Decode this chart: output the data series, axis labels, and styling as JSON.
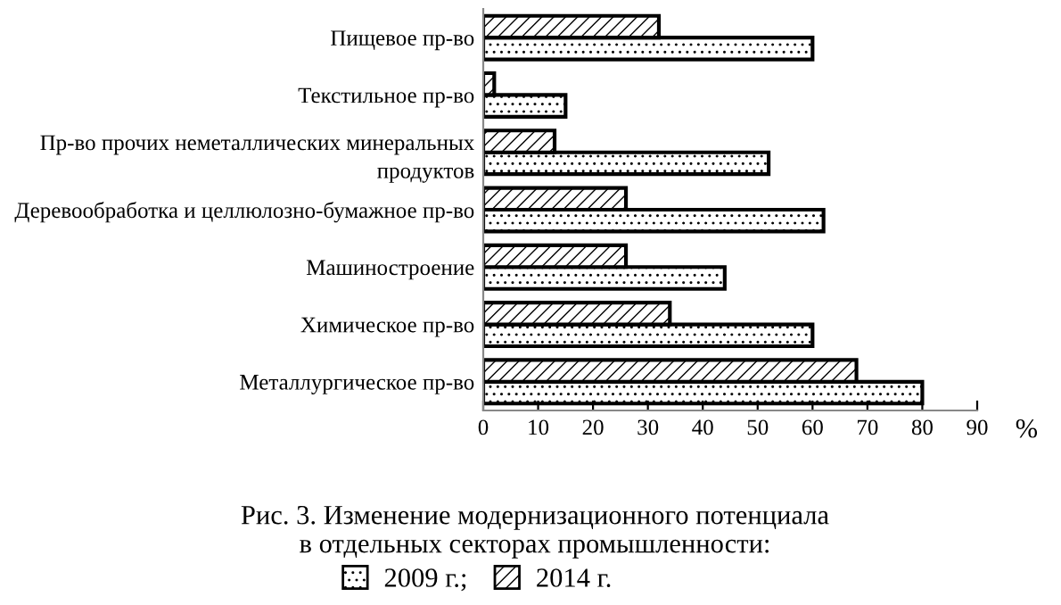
{
  "chart_data": {
    "type": "bar",
    "orientation": "horizontal",
    "xlabel": "%",
    "categories": [
      "Пищевое пр-во",
      "Текстильное пр-во",
      "Пр-во прочих неметаллических минеральных\nпродуктов",
      "Деревообработка и целлюлозно-бумажное пр-во",
      "Машиностроение",
      "Химическое пр-во",
      "Металлургическое пр-во"
    ],
    "series": [
      {
        "name": "2009 г.;",
        "color": "#000000",
        "values": [
          60,
          15,
          52,
          62,
          44,
          60,
          80
        ]
      },
      {
        "name": "2014 г.",
        "color": "#000000",
        "values": [
          32,
          2,
          13,
          26,
          26,
          34,
          68
        ]
      }
    ],
    "xlim": [
      0,
      90
    ],
    "xticks": [
      0,
      10,
      20,
      30,
      40,
      50,
      60,
      70,
      80,
      90
    ],
    "grid": false,
    "legend": "bottom",
    "annotations": [
      "Рис. 3. Изменение модернизационного потенциала\nв отдельных секторах промышленности:"
    ]
  }
}
